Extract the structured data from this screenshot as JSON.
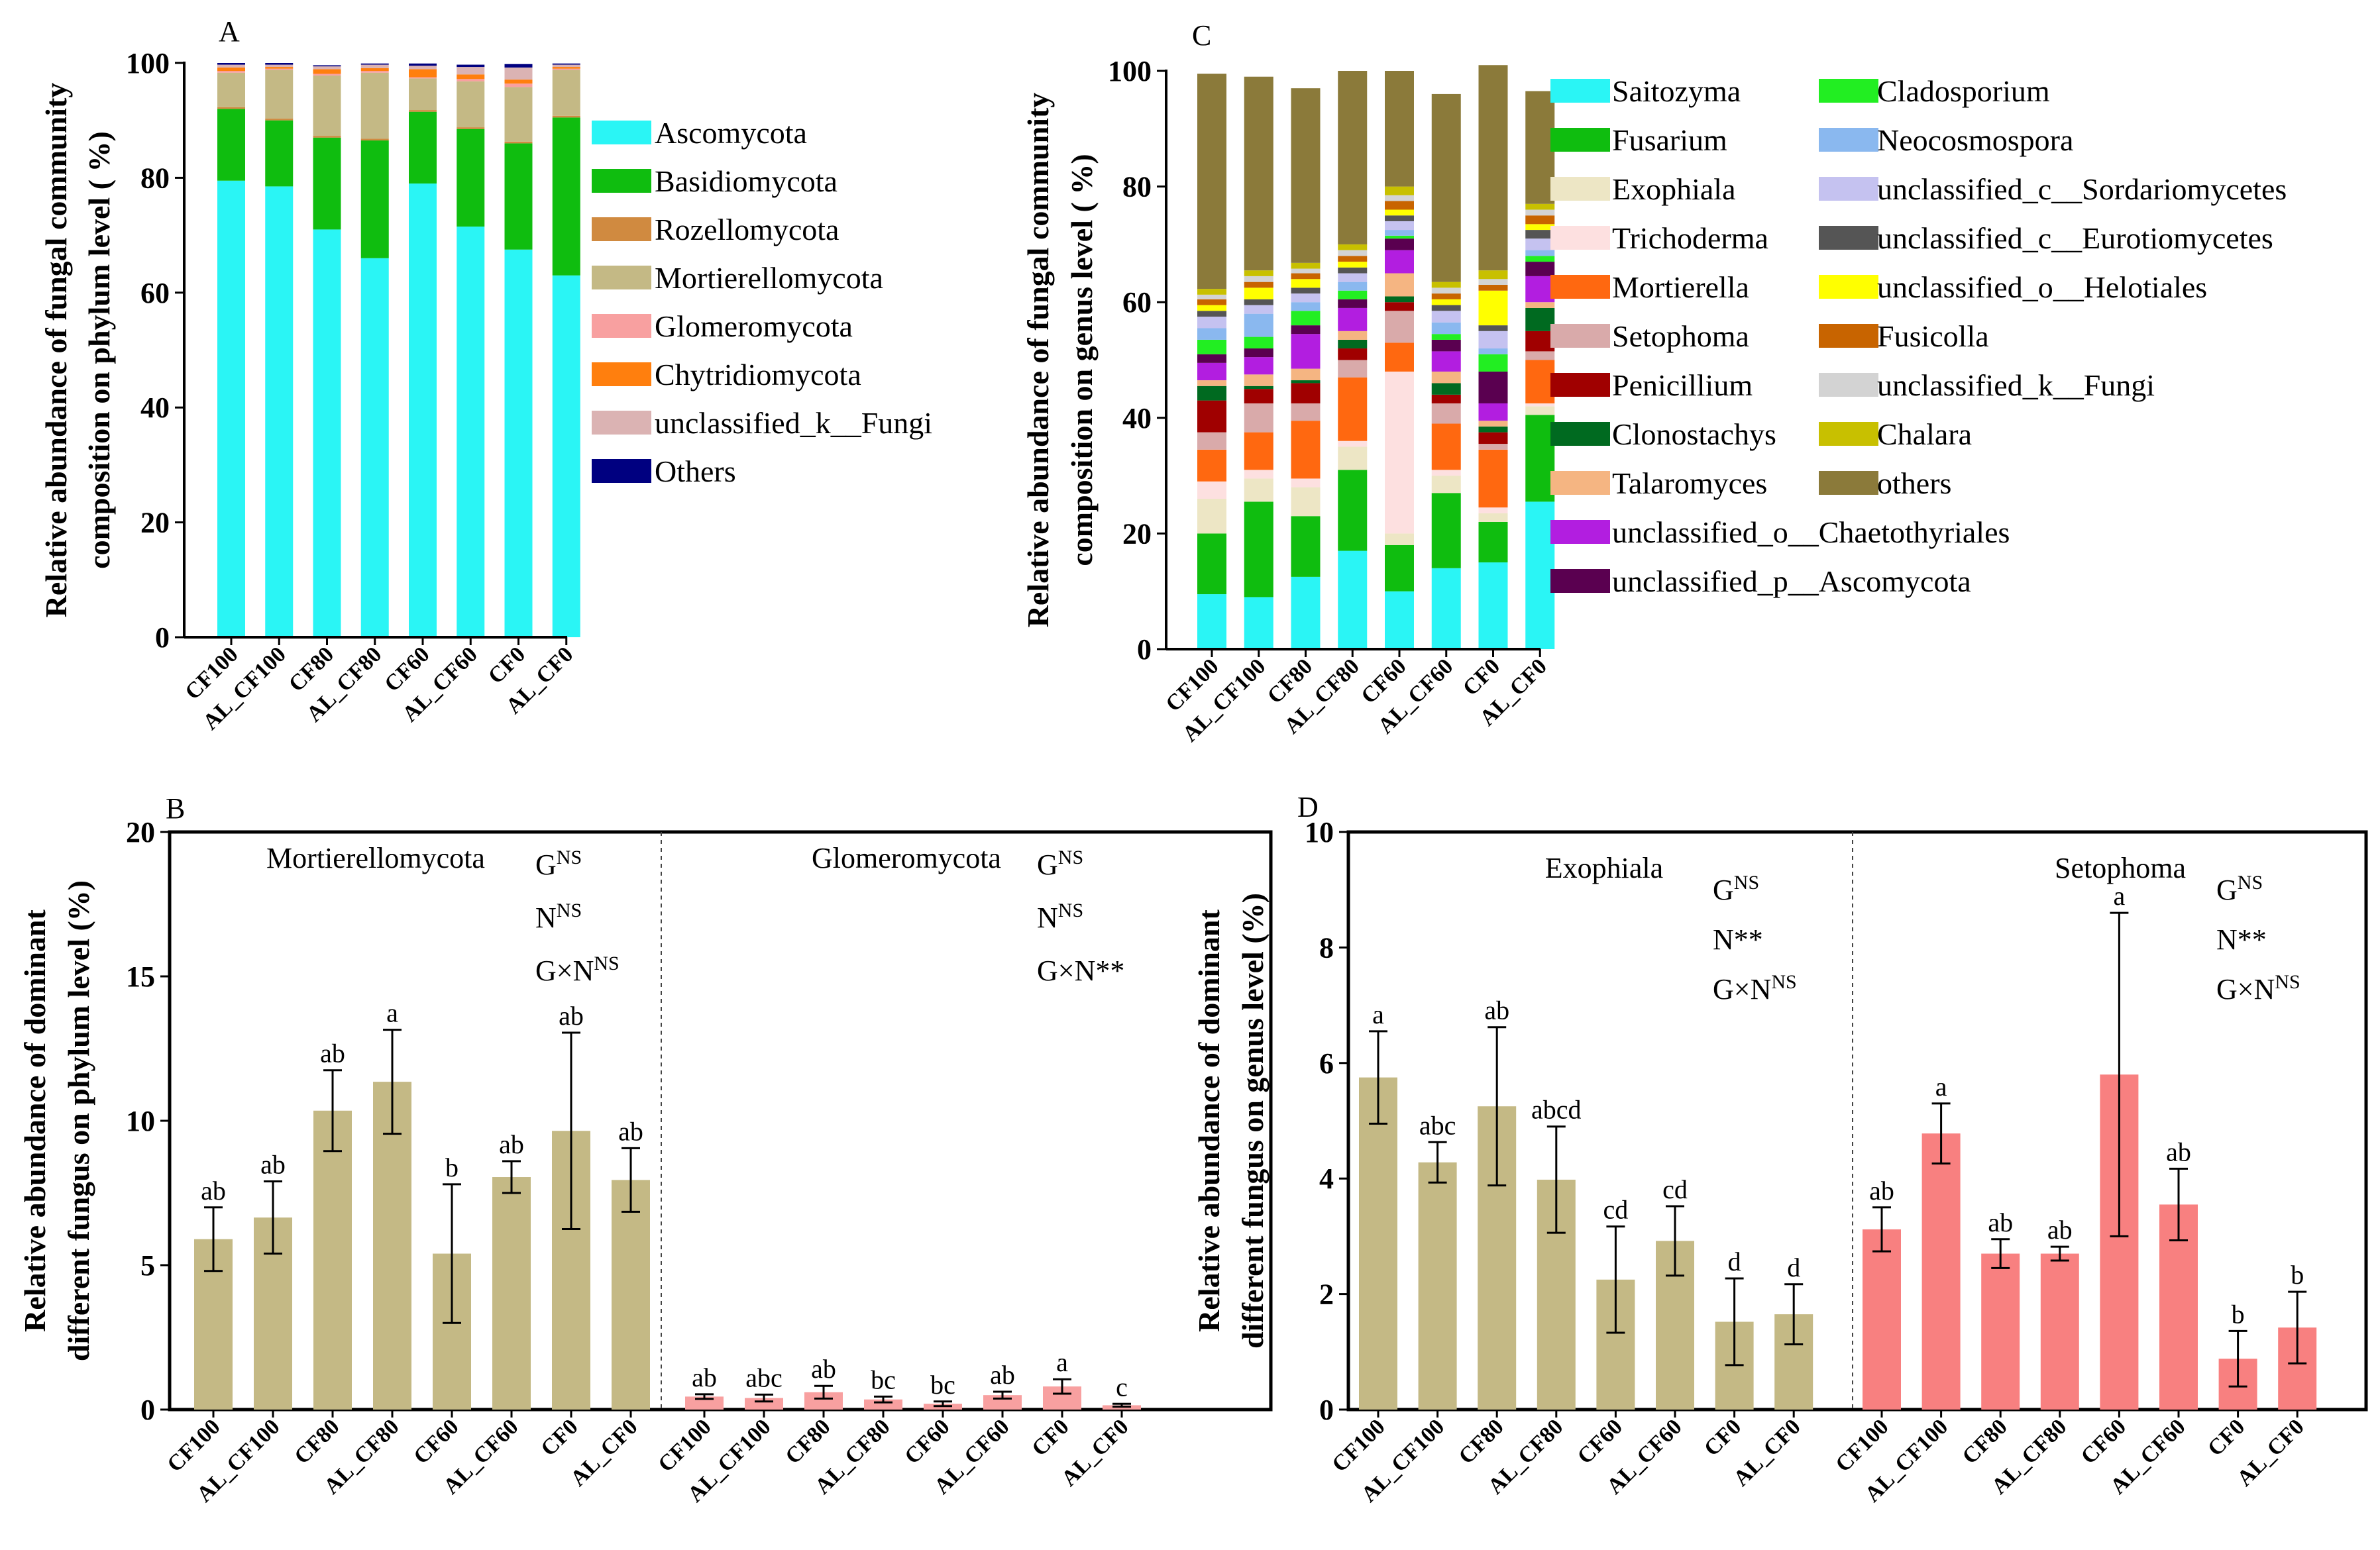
{
  "chart_data": [
    {
      "panel": "A",
      "type": "bar",
      "stacked": true,
      "title": "",
      "ylabel": "Relative abundance of fungal community composition on phylum level ( %)",
      "xlabel": "",
      "ylim": [
        0,
        100
      ],
      "yticks": [
        0,
        20,
        40,
        60,
        80,
        100
      ],
      "categories": [
        "CF100",
        "AL_CF100",
        "CF80",
        "AL_CF80",
        "CF60",
        "AL_CF60",
        "CF0",
        "AL_CF0"
      ],
      "series": [
        {
          "name": "Ascomycota",
          "color": "#2af5f5",
          "values": [
            79.5,
            78.5,
            71.0,
            66.0,
            79.0,
            71.5,
            67.5,
            63.0
          ]
        },
        {
          "name": "Basidiomycota",
          "color": "#0fbd0f",
          "values": [
            12.5,
            11.5,
            16.0,
            20.5,
            12.5,
            17.0,
            18.5,
            27.5
          ]
        },
        {
          "name": "Rozellomycota",
          "color": "#d08a40",
          "values": [
            0.3,
            0.3,
            0.3,
            0.3,
            0.3,
            0.3,
            0.3,
            0.3
          ]
        },
        {
          "name": "Mortierellomycota",
          "color": "#c4b985",
          "values": [
            6.0,
            8.5,
            10.5,
            11.5,
            5.5,
            8.0,
            9.5,
            8.0
          ]
        },
        {
          "name": "Glomeromycota",
          "color": "#f8a0a0",
          "values": [
            0.3,
            0.2,
            0.3,
            0.3,
            0.2,
            0.4,
            0.6,
            0.2
          ]
        },
        {
          "name": "Chytridiomycota",
          "color": "#ff7f0e",
          "values": [
            0.6,
            0.3,
            0.8,
            0.5,
            1.4,
            0.8,
            0.7,
            0.3
          ]
        },
        {
          "name": "unclassified_k__Fungi",
          "color": "#dbb3b3",
          "values": [
            0.5,
            0.4,
            0.5,
            0.6,
            0.6,
            1.3,
            2.1,
            0.4
          ]
        },
        {
          "name": "Others",
          "color": "#000080",
          "values": [
            0.3,
            0.3,
            0.2,
            0.2,
            0.4,
            0.4,
            0.6,
            0.2
          ]
        }
      ]
    },
    {
      "panel": "C",
      "type": "bar",
      "stacked": true,
      "title": "",
      "ylabel": "Relative abundance of fungal community composition on genus level ( %)",
      "xlabel": "",
      "ylim": [
        0,
        100
      ],
      "yticks": [
        0,
        20,
        40,
        60,
        80,
        100
      ],
      "categories": [
        "CF100",
        "AL_CF100",
        "CF80",
        "AL_CF80",
        "CF60",
        "AL_CF60",
        "CF0",
        "AL_CF0"
      ],
      "series": [
        {
          "name": "Saitozyma",
          "color": "#2af5f5",
          "values": [
            9.5,
            9.0,
            12.5,
            17.0,
            10.0,
            14.0,
            15.0,
            25.5
          ]
        },
        {
          "name": "Fusarium",
          "color": "#0fbd0f",
          "values": [
            10.5,
            16.5,
            10.5,
            14.0,
            8.0,
            13.0,
            7.0,
            15.0
          ]
        },
        {
          "name": "Exophiala",
          "color": "#ede6c5",
          "values": [
            6.0,
            4.0,
            5.0,
            4.0,
            2.0,
            3.0,
            1.5,
            1.5
          ]
        },
        {
          "name": "Trichoderma",
          "color": "#fde0e0",
          "values": [
            3.0,
            1.5,
            1.5,
            1.0,
            28.0,
            1.0,
            1.0,
            0.5
          ]
        },
        {
          "name": "Mortierella",
          "color": "#ff6810",
          "values": [
            5.5,
            6.5,
            10.0,
            11.0,
            5.0,
            8.0,
            10.0,
            7.5
          ]
        },
        {
          "name": "Setophoma",
          "color": "#d9aaaa",
          "values": [
            3.0,
            5.0,
            3.0,
            3.0,
            5.5,
            3.5,
            1.0,
            1.5
          ]
        },
        {
          "name": "Penicillium",
          "color": "#a00000",
          "values": [
            5.5,
            2.5,
            3.5,
            2.0,
            1.5,
            1.5,
            2.0,
            3.5
          ]
        },
        {
          "name": "Clonostachys",
          "color": "#006a20",
          "values": [
            2.5,
            0.5,
            0.5,
            1.5,
            1.0,
            2.0,
            1.0,
            4.0
          ]
        },
        {
          "name": "Talaromyces",
          "color": "#f5b582",
          "values": [
            1.0,
            2.0,
            2.0,
            1.5,
            4.0,
            2.0,
            1.0,
            1.0
          ]
        },
        {
          "name": "unclassified_o__Chaetothyriales",
          "color": "#b21ee0",
          "values": [
            3.0,
            3.0,
            6.0,
            4.0,
            4.0,
            3.5,
            3.0,
            4.5
          ]
        },
        {
          "name": "unclassified_p__Ascomycota",
          "color": "#5a0050",
          "values": [
            1.5,
            1.5,
            1.5,
            1.5,
            2.0,
            2.0,
            5.5,
            2.5
          ]
        },
        {
          "name": "Cladosporium",
          "color": "#22ee22",
          "values": [
            2.5,
            2.0,
            2.5,
            1.5,
            0.5,
            1.0,
            3.0,
            1.0
          ]
        },
        {
          "name": "Neocosmospora",
          "color": "#8ab8ef",
          "values": [
            2.0,
            4.0,
            1.5,
            1.5,
            1.0,
            2.0,
            1.0,
            1.0
          ]
        },
        {
          "name": "unclassified_c__Sordariomycetes",
          "color": "#c5c2f0",
          "values": [
            2.0,
            1.5,
            1.5,
            1.5,
            1.5,
            2.0,
            3.0,
            2.0
          ]
        },
        {
          "name": "unclassified_c__Eurotiomycetes",
          "color": "#555555",
          "values": [
            1.0,
            1.0,
            1.0,
            1.0,
            1.0,
            1.0,
            1.0,
            1.5
          ]
        },
        {
          "name": "unclassified_o__Helotiales",
          "color": "#ffff00",
          "values": [
            1.0,
            2.0,
            1.5,
            1.0,
            1.0,
            1.0,
            6.0,
            1.0
          ]
        },
        {
          "name": "Fusicolla",
          "color": "#c86400",
          "values": [
            1.0,
            1.0,
            1.0,
            1.0,
            1.5,
            1.0,
            1.0,
            1.5
          ]
        },
        {
          "name": "unclassified_k__Fungi",
          "color": "#d3d3d3",
          "values": [
            0.8,
            1.0,
            0.8,
            1.0,
            1.0,
            1.0,
            1.0,
            1.0
          ]
        },
        {
          "name": "Chalara",
          "color": "#c8c000",
          "values": [
            1.0,
            1.0,
            1.0,
            1.0,
            1.5,
            1.0,
            1.5,
            1.0
          ]
        },
        {
          "name": "others",
          "color": "#8b7a3a",
          "values": [
            37.2,
            33.5,
            30.2,
            30.0,
            20.0,
            32.5,
            35.5,
            19.5
          ]
        }
      ]
    },
    {
      "panel": "B",
      "type": "bar",
      "title": "",
      "ylabel": "Relative abundance of dominant different fungus on phylum level (%)",
      "xlabel": "",
      "ylim": [
        0,
        20
      ],
      "yticks": [
        0,
        5,
        10,
        15,
        20
      ],
      "categories": [
        "CF100",
        "AL_CF100",
        "CF80",
        "AL_CF80",
        "CF60",
        "AL_CF60",
        "CF0",
        "AL_CF0"
      ],
      "groups": [
        {
          "name": "Mortierellomycota",
          "color": "#c4b985",
          "values": [
            5.9,
            6.65,
            10.35,
            11.35,
            5.4,
            8.05,
            9.65,
            7.95
          ],
          "errors": [
            1.1,
            1.25,
            1.4,
            1.8,
            2.4,
            0.55,
            3.4,
            1.1
          ],
          "letters": [
            "ab",
            "ab",
            "ab",
            "a",
            "b",
            "ab",
            "ab",
            "ab"
          ],
          "significance": [
            "G",
            "NS",
            "N",
            "NS",
            "G×N",
            "NS"
          ]
        },
        {
          "name": "Glomeromycota",
          "color": "#f8a0a0",
          "values": [
            0.45,
            0.4,
            0.6,
            0.35,
            0.2,
            0.5,
            0.8,
            0.15
          ],
          "errors": [
            0.08,
            0.12,
            0.22,
            0.1,
            0.08,
            0.12,
            0.25,
            0.05
          ],
          "letters": [
            "ab",
            "abc",
            "ab",
            "bc",
            "bc",
            "ab",
            "a",
            "c"
          ],
          "significance": [
            "G",
            "NS",
            "N",
            "NS",
            "G×N",
            "**"
          ]
        }
      ]
    },
    {
      "panel": "D",
      "type": "bar",
      "title": "",
      "ylabel": "Relative abundance of dominant different fungus on genus level (%)",
      "xlabel": "",
      "ylim": [
        0,
        10
      ],
      "yticks": [
        0,
        2,
        4,
        6,
        8,
        10
      ],
      "categories": [
        "CF100",
        "AL_CF100",
        "CF80",
        "AL_CF80",
        "CF60",
        "AL_CF60",
        "CF0",
        "AL_CF0"
      ],
      "groups": [
        {
          "name": "Exophiala",
          "color": "#c4b985",
          "values": [
            5.75,
            4.28,
            5.25,
            3.98,
            2.25,
            2.92,
            1.52,
            1.65
          ],
          "errors": [
            0.8,
            0.35,
            1.37,
            0.92,
            0.92,
            0.6,
            0.75,
            0.52
          ],
          "letters": [
            "a",
            "abc",
            "ab",
            "abcd",
            "cd",
            "cd",
            "d",
            "d"
          ],
          "significance": [
            "G",
            "NS",
            "N",
            "**",
            "G×N",
            "NS"
          ]
        },
        {
          "name": "Setophoma",
          "color": "#f88080",
          "values": [
            3.12,
            4.78,
            2.7,
            2.7,
            5.8,
            3.55,
            0.88,
            1.42
          ],
          "errors": [
            0.38,
            0.52,
            0.25,
            0.12,
            2.8,
            0.62,
            0.48,
            0.62
          ],
          "letters": [
            "ab",
            "a",
            "ab",
            "ab",
            "a",
            "ab",
            "b",
            "b"
          ],
          "significance": [
            "G",
            "NS",
            "N",
            "**",
            "G×N",
            "NS"
          ]
        }
      ]
    }
  ],
  "panels": {
    "A": {
      "letter": "A",
      "ylabel_line1": "Relative abundance of fungal community",
      "ylabel_line2": "composition on phylum level ( %)"
    },
    "B": {
      "letter": "B",
      "ylabel_line1": "Relative abundance of dominant",
      "ylabel_line2": "different fungus on phylum level (%)"
    },
    "C": {
      "letter": "C",
      "ylabel_line1": "Relative abundance of fungal community",
      "ylabel_line2": "composition on genus level ( %)"
    },
    "D": {
      "letter": "D",
      "ylabel_line1": "Relative abundance of dominant",
      "ylabel_line2": "different fungus on genus level (%)"
    }
  }
}
